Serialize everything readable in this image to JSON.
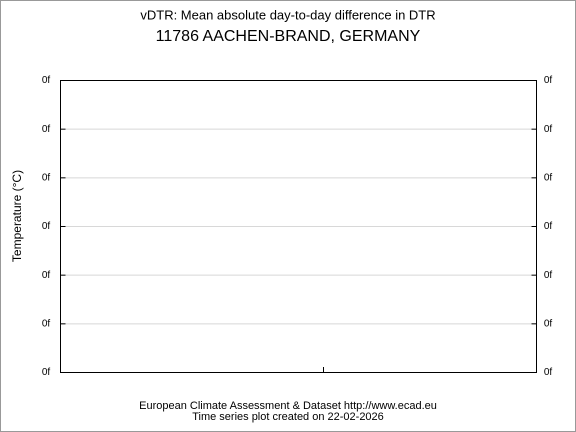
{
  "chart_data": {
    "type": "line",
    "title": "vDTR: Mean absolute day-to-day difference in DTR",
    "subtitle": "11786 AACHEN-BRAND, GERMANY",
    "y_label": "Temperature (°C)",
    "series": [],
    "ylim": [
      0,
      6
    ],
    "yticks": [
      {
        "value": 0,
        "label": "0f"
      },
      {
        "value": 1,
        "label": "0f"
      },
      {
        "value": 2,
        "label": "0f"
      },
      {
        "value": 3,
        "label": "0f"
      },
      {
        "value": 4,
        "label": "0f"
      },
      {
        "value": 5,
        "label": "0f"
      },
      {
        "value": 6,
        "label": "0f"
      }
    ],
    "grid": true,
    "footer": [
      "European Climate Assessment & Dataset  http://www.ecad.eu",
      "Time series plot created on 22-02-2026"
    ]
  }
}
